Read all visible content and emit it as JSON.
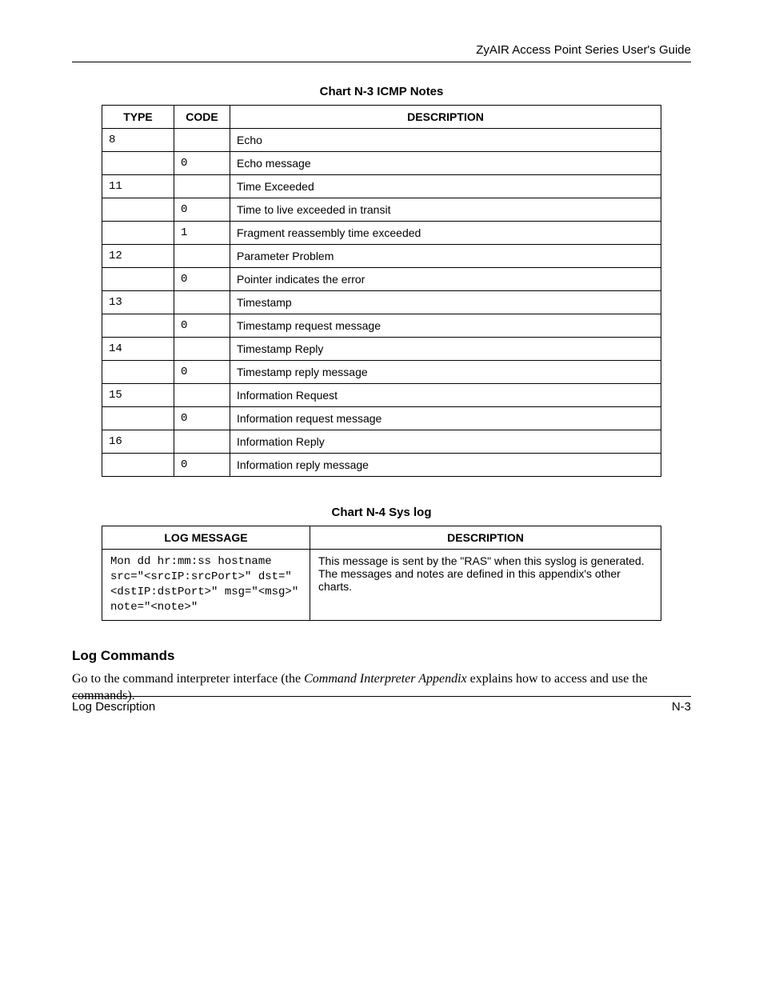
{
  "header": {
    "title": "ZyAIR Access Point Series User's Guide"
  },
  "chart_n3": {
    "caption": "Chart N-3 ICMP Notes",
    "columns": {
      "type": "TYPE",
      "code": "CODE",
      "desc": "DESCRIPTION"
    },
    "rows": [
      {
        "type": "8",
        "code": "",
        "desc": "Echo"
      },
      {
        "type": "",
        "code": "0",
        "desc": "Echo message"
      },
      {
        "type": "11",
        "code": "",
        "desc": "Time Exceeded"
      },
      {
        "type": "",
        "code": "0",
        "desc": "Time to live exceeded in transit"
      },
      {
        "type": "",
        "code": "1",
        "desc": "Fragment reassembly time exceeded"
      },
      {
        "type": "12",
        "code": "",
        "desc": "Parameter Problem"
      },
      {
        "type": "",
        "code": "0",
        "desc": "Pointer indicates the error"
      },
      {
        "type": "13",
        "code": "",
        "desc": "Timestamp"
      },
      {
        "type": "",
        "code": "0",
        "desc": "Timestamp request message"
      },
      {
        "type": "14",
        "code": "",
        "desc": "Timestamp Reply"
      },
      {
        "type": "",
        "code": "0",
        "desc": "Timestamp reply message"
      },
      {
        "type": "15",
        "code": "",
        "desc": "Information Request"
      },
      {
        "type": "",
        "code": "0",
        "desc": "Information request message"
      },
      {
        "type": "16",
        "code": "",
        "desc": "Information Reply"
      },
      {
        "type": "",
        "code": "0",
        "desc": "Information reply message"
      }
    ]
  },
  "chart_n4": {
    "caption": "Chart N-4 Sys log",
    "columns": {
      "log": "LOG MESSAGE",
      "desc": "DESCRIPTION"
    },
    "row": {
      "log": "Mon dd hr:mm:ss hostname src=\"<srcIP:srcPort>\" dst=\"<dstIP:dstPort>\" msg=\"<msg>\" note=\"<note>\"",
      "desc": "This message is sent by the \"RAS\" when this syslog is generated. The messages and notes are defined in this appendix's other charts."
    }
  },
  "section": {
    "heading": "Log Commands",
    "pre": "Go to the command interpreter interface (the ",
    "ital": "Command Interpreter Appendix",
    "post": " explains how to access and use the commands)."
  },
  "footer": {
    "left": "Log Description",
    "right": "N-3"
  }
}
